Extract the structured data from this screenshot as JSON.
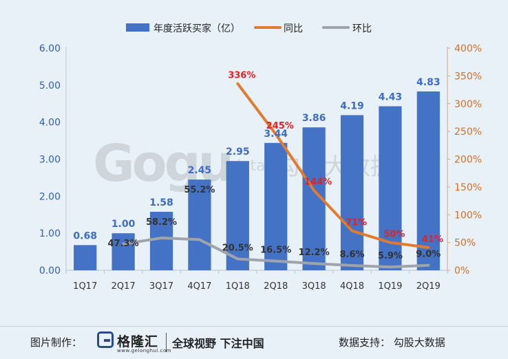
{
  "chart_data": {
    "type": "bar",
    "categories": [
      "1Q17",
      "2Q17",
      "3Q17",
      "4Q17",
      "1Q18",
      "2Q18",
      "3Q18",
      "4Q18",
      "1Q19",
      "2Q19"
    ],
    "series": [
      {
        "name": "年度活跃买家（亿）",
        "kind": "bar",
        "axis": "left",
        "values": [
          0.68,
          1.0,
          1.58,
          2.45,
          2.95,
          3.44,
          3.86,
          4.19,
          4.43,
          4.83
        ],
        "labels": [
          "0.68",
          "1.00",
          "1.58",
          "2.45",
          "2.95",
          "3.44",
          "3.86",
          "4.19",
          "4.43",
          "4.83"
        ]
      },
      {
        "name": "同比",
        "kind": "line",
        "axis": "right",
        "values": [
          null,
          null,
          null,
          null,
          336,
          245,
          144,
          71,
          50,
          41
        ],
        "labels": [
          "",
          "",
          "",
          "",
          "336%",
          "245%",
          "144%",
          "71%",
          "50%",
          "41%"
        ]
      },
      {
        "name": "环比",
        "kind": "line",
        "axis": "right",
        "values": [
          null,
          47.3,
          58.2,
          55.2,
          20.5,
          16.5,
          12.2,
          8.6,
          5.9,
          9.0
        ],
        "labels": [
          "",
          "47.3%",
          "58.2%",
          "55.2%",
          "20.5%",
          "16.5%",
          "12.2%",
          "8.6%",
          "5.9%",
          "9.0%"
        ]
      }
    ],
    "yleft": {
      "min": 0,
      "max": 6,
      "ticks": [
        "0.00",
        "1.00",
        "2.00",
        "3.00",
        "4.00",
        "5.00",
        "6.00"
      ]
    },
    "yright": {
      "min": 0,
      "max": 400,
      "ticks": [
        "0%",
        "50%",
        "100%",
        "150%",
        "200%",
        "250%",
        "300%",
        "350%",
        "400%"
      ]
    },
    "legend_position": "top",
    "colors": {
      "bar": "#4472c4",
      "yoy": "#e07b2f",
      "qoq": "#9ea4aa",
      "yoy_label": "#e02424",
      "bar_label": "#3d6bc8",
      "qoq_label": "#333333"
    },
    "watermark": "Gogu data 勾股大数据"
  },
  "footer": {
    "credit": "图片制作：",
    "logo_text": "格隆汇",
    "logo_url": "www.gelonghui.com",
    "slogan": "全球视野 下注中国",
    "support": "数据支持：   勾股大数据"
  }
}
